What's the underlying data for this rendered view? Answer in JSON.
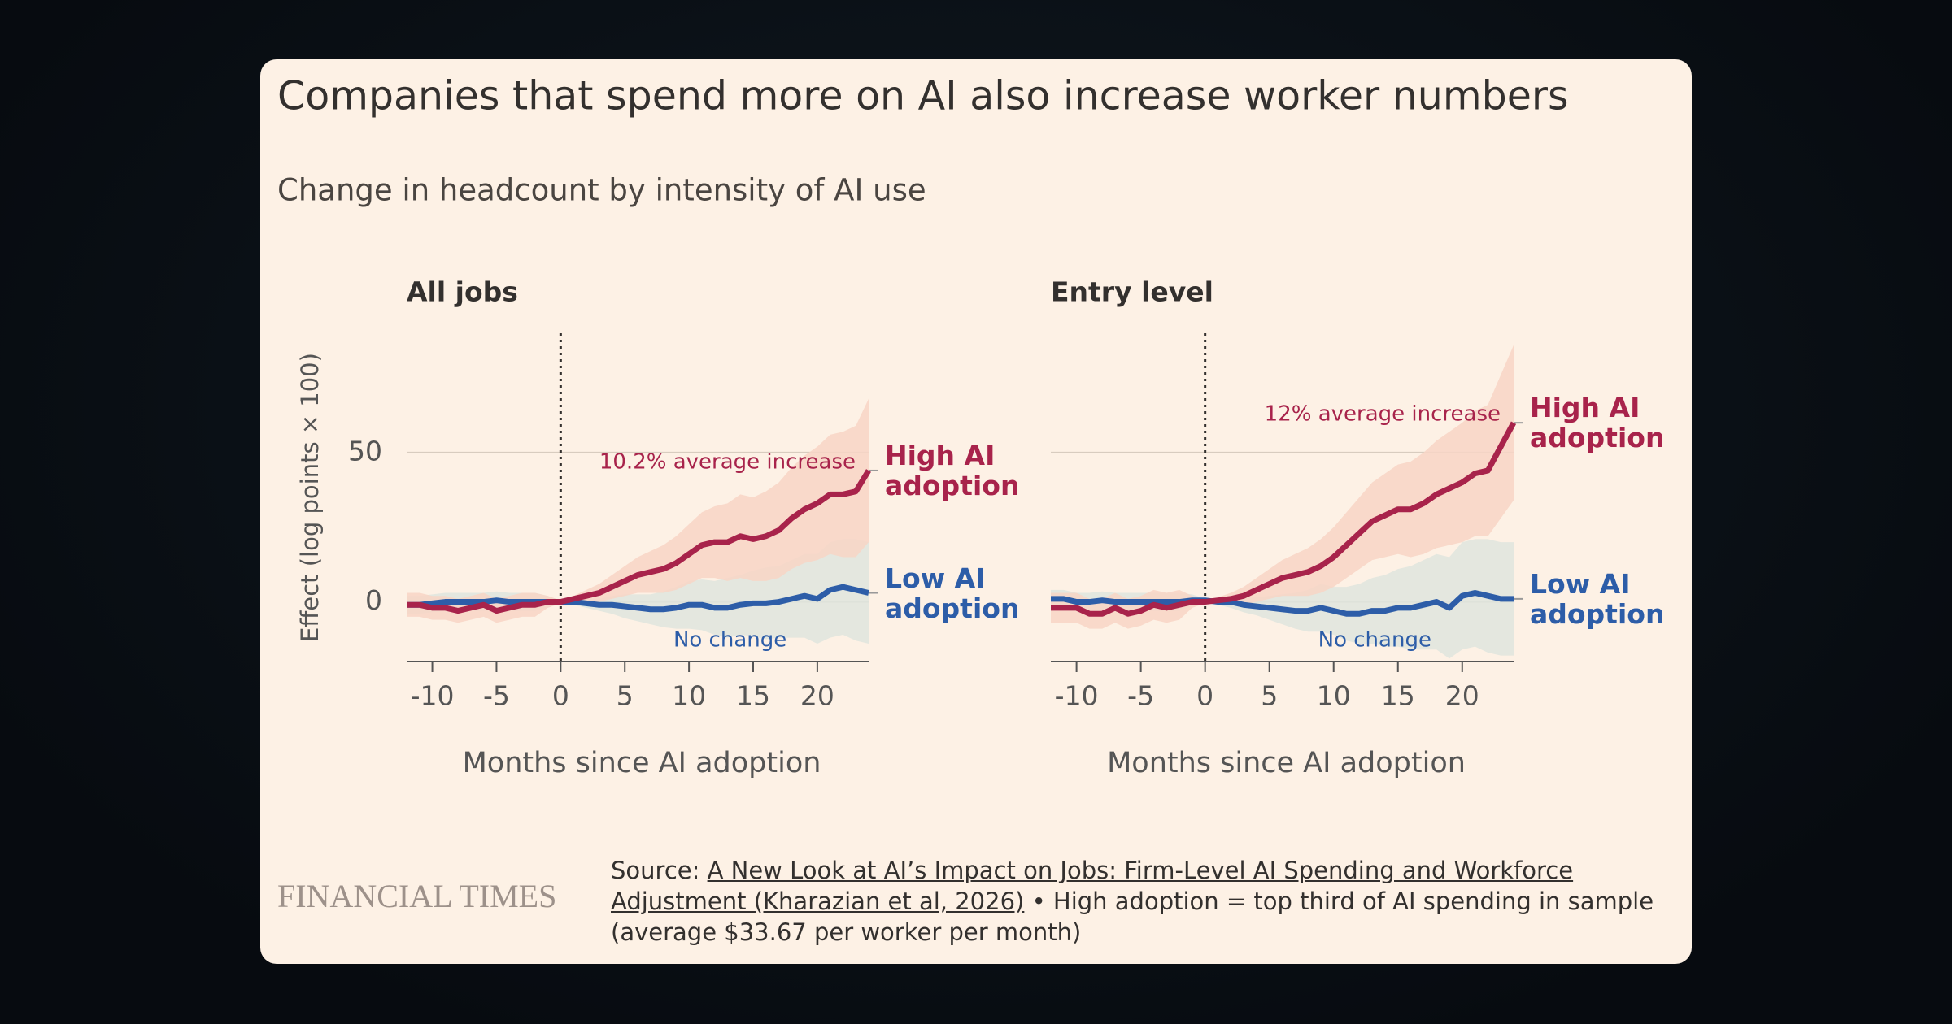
{
  "header": {
    "title": "Companies that spend more on AI also increase worker numbers",
    "subtitle": "Change in headcount by intensity of AI use"
  },
  "footer": {
    "brand": "FINANCIAL TIMES",
    "source_prefix": "Source:",
    "source_link": "A New Look at AI’s Impact on Jobs: Firm-Level AI Spending and Workforce Adjustment (Kharazian et al, 2026)",
    "source_note": "• High adoption = top third of AI spending in sample (average $33.67 per worker per month)"
  },
  "chart_data": [
    {
      "type": "line",
      "title": "All jobs",
      "y_label": "Effect (log points × 100)",
      "x_label": "Months since AI adoption",
      "xlim": [
        -12,
        24
      ],
      "ylim": [
        -20,
        90
      ],
      "xticks": [
        -10,
        -5,
        0,
        5,
        10,
        15,
        20
      ],
      "yticks": [
        0,
        50
      ],
      "ytick_labels": true,
      "grid": true,
      "vline": 0,
      "annotations": [
        "10.2% average increase",
        "No change"
      ],
      "x": [
        -12,
        -11,
        -10,
        -9,
        -8,
        -7,
        -6,
        -5,
        -4,
        -3,
        -2,
        -1,
        0,
        1,
        2,
        3,
        4,
        5,
        6,
        7,
        8,
        9,
        10,
        11,
        12,
        13,
        14,
        15,
        16,
        17,
        18,
        19,
        20,
        21,
        22,
        23,
        24
      ],
      "series": [
        {
          "name": "Low AI adoption",
          "color": "#2d5da8",
          "band_color": "#dfe5de",
          "values": [
            -1,
            -1,
            -0.5,
            0,
            0,
            0,
            0,
            0.5,
            0,
            0,
            0,
            0,
            0,
            0,
            -0.5,
            -1,
            -1,
            -1.5,
            -2,
            -2.5,
            -2.5,
            -2,
            -1,
            -1,
            -2,
            -2,
            -1,
            -0.5,
            -0.5,
            0,
            1,
            2,
            1,
            4,
            5,
            4,
            3
          ],
          "upper": [
            2,
            2,
            2.5,
            3,
            3,
            3,
            3,
            3.5,
            3,
            3,
            3,
            2,
            0.5,
            1,
            1,
            1,
            2,
            2.5,
            2.5,
            2.5,
            3.5,
            5,
            7,
            7.5,
            7,
            8,
            9,
            10.5,
            11.5,
            12,
            14,
            16,
            16,
            20,
            21,
            21,
            20
          ],
          "lower": [
            -4,
            -4,
            -3.5,
            -3,
            -3,
            -3,
            -3,
            -2.5,
            -3,
            -3,
            -3,
            -2,
            -0.5,
            -1,
            -2,
            -3,
            -4,
            -5.5,
            -6.5,
            -7.5,
            -8.5,
            -9,
            -9,
            -9.5,
            -11,
            -12,
            -11,
            -11.5,
            -12.5,
            -12,
            -12,
            -12,
            -14,
            -12,
            -11,
            -13,
            -14
          ]
        },
        {
          "name": "High AI adoption",
          "color": "#a8234b",
          "band_color": "#f8d5c5",
          "values": [
            -1,
            -1,
            -2,
            -2,
            -3,
            -2,
            -1,
            -3,
            -2,
            -1,
            -1,
            0,
            0,
            1,
            2,
            3,
            5,
            7,
            9,
            10,
            11,
            13,
            16,
            19,
            20,
            20,
            22,
            21,
            22,
            24,
            28,
            31,
            33,
            36,
            36,
            37,
            44
          ],
          "upper": [
            3,
            3,
            2,
            2,
            1,
            2,
            3,
            1,
            2,
            3,
            3,
            2,
            0.5,
            2,
            4,
            6,
            9,
            12,
            15,
            17,
            19,
            22,
            26,
            30,
            32,
            33,
            36,
            35,
            37,
            40,
            45,
            49,
            52,
            56,
            57,
            59,
            68
          ],
          "lower": [
            -5,
            -5,
            -6,
            -6,
            -7,
            -6,
            -5,
            -7,
            -6,
            -5,
            -5,
            -2,
            -0.5,
            0,
            0,
            0,
            1,
            2,
            3,
            3,
            3,
            4,
            6,
            8,
            8,
            7,
            8,
            7,
            7,
            8,
            11,
            13,
            14,
            16,
            15,
            15,
            20
          ]
        }
      ]
    },
    {
      "type": "line",
      "title": "Entry level",
      "x_label": "Months since AI adoption",
      "xlim": [
        -12,
        24
      ],
      "ylim": [
        -20,
        90
      ],
      "xticks": [
        -10,
        -5,
        0,
        5,
        10,
        15,
        20
      ],
      "yticks": [
        0,
        50
      ],
      "ytick_labels": false,
      "grid": true,
      "vline": 0,
      "annotations": [
        "12% average increase",
        "No change"
      ],
      "x": [
        -12,
        -11,
        -10,
        -9,
        -8,
        -7,
        -6,
        -5,
        -4,
        -3,
        -2,
        -1,
        0,
        1,
        2,
        3,
        4,
        5,
        6,
        7,
        8,
        9,
        10,
        11,
        12,
        13,
        14,
        15,
        16,
        17,
        18,
        19,
        20,
        21,
        22,
        23,
        24
      ],
      "series": [
        {
          "name": "Low AI adoption",
          "color": "#2d5da8",
          "band_color": "#dfe5de",
          "values": [
            1,
            1,
            0,
            0,
            0.5,
            0,
            0,
            0,
            0,
            0,
            0,
            0.5,
            0.5,
            0,
            0,
            -1,
            -1.5,
            -2,
            -2.5,
            -3,
            -3,
            -2,
            -3,
            -4,
            -4,
            -3,
            -3,
            -2,
            -2,
            -1,
            0,
            -2,
            2,
            3,
            2,
            1,
            1
          ],
          "upper": [
            4,
            4,
            3,
            3,
            3.5,
            3,
            3,
            3,
            3,
            3,
            3,
            2.5,
            1,
            1,
            2,
            1.5,
            1.5,
            2,
            2.5,
            3,
            4,
            6,
            5,
            5,
            6,
            8,
            9,
            11,
            12,
            14,
            16,
            15,
            20,
            21,
            21,
            20,
            20
          ],
          "lower": [
            -2,
            -2,
            -3,
            -3,
            -2.5,
            -3,
            -3,
            -3,
            -3,
            -3,
            -3,
            -1.5,
            0,
            -1,
            -2,
            -3.5,
            -4.5,
            -6,
            -7.5,
            -9,
            -10,
            -10,
            -11,
            -13,
            -14,
            -14,
            -15,
            -15,
            -16,
            -16,
            -16,
            -19,
            -16,
            -15,
            -17,
            -18,
            -18
          ]
        },
        {
          "name": "High AI adoption",
          "color": "#a8234b",
          "band_color": "#f8d5c5",
          "values": [
            -2,
            -2,
            -2,
            -4,
            -4,
            -2,
            -4,
            -3,
            -1,
            -2,
            -1,
            0,
            0,
            0.5,
            1,
            2,
            4,
            6,
            8,
            9,
            10,
            12,
            15,
            19,
            23,
            27,
            29,
            31,
            31,
            33,
            36,
            38,
            40,
            43,
            44,
            52,
            60
          ],
          "upper": [
            3,
            3,
            3,
            1,
            1,
            3,
            1,
            2,
            4,
            3,
            4,
            2,
            0.5,
            1.5,
            3,
            5,
            8,
            11,
            14,
            16,
            18,
            21,
            25,
            30,
            35,
            40,
            43,
            46,
            47,
            50,
            54,
            57,
            60,
            64,
            66,
            76,
            86
          ],
          "lower": [
            -7,
            -7,
            -7,
            -9,
            -9,
            -7,
            -9,
            -8,
            -6,
            -7,
            -6,
            -2,
            -0.5,
            -0.5,
            -1,
            -1,
            0,
            1,
            2,
            2,
            2,
            3,
            5,
            8,
            11,
            14,
            15,
            16,
            15,
            16,
            18,
            19,
            20,
            22,
            22,
            28,
            34
          ]
        }
      ]
    }
  ]
}
